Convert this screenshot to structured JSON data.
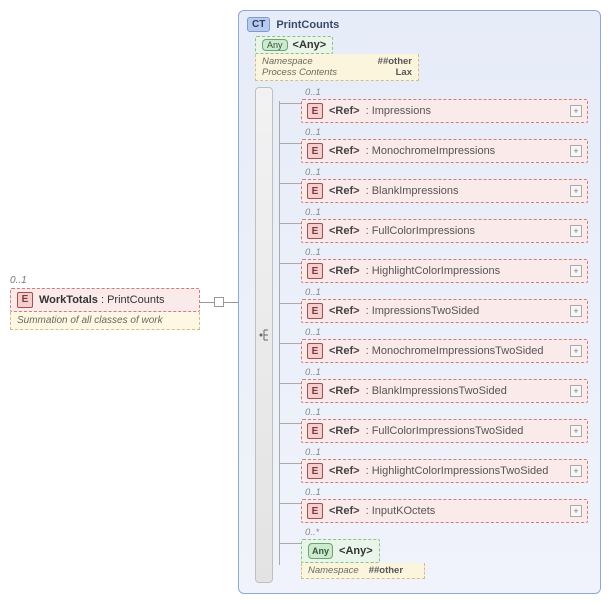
{
  "left": {
    "cardinality": "0..1",
    "badge": "E",
    "name": "WorkTotals",
    "type": "PrintCounts",
    "doc": "Summation of all classes of work"
  },
  "ct": {
    "badge": "CT",
    "title": "PrintCounts"
  },
  "anyTop": {
    "badge": "Any",
    "label": "<Any>",
    "details": [
      {
        "k": "Namespace",
        "v": "##other"
      },
      {
        "k": "Process Contents",
        "v": "Lax"
      }
    ]
  },
  "children": [
    {
      "card": "0..1",
      "badge": "E",
      "ref": "<Ref>",
      "type": "Impressions",
      "plus": true
    },
    {
      "card": "0..1",
      "badge": "E",
      "ref": "<Ref>",
      "type": "MonochromeImpressions",
      "plus": true
    },
    {
      "card": "0..1",
      "badge": "E",
      "ref": "<Ref>",
      "type": "BlankImpressions",
      "plus": true
    },
    {
      "card": "0..1",
      "badge": "E",
      "ref": "<Ref>",
      "type": "FullColorImpressions",
      "plus": true
    },
    {
      "card": "0..1",
      "badge": "E",
      "ref": "<Ref>",
      "type": "HighlightColorImpressions",
      "plus": true
    },
    {
      "card": "0..1",
      "badge": "E",
      "ref": "<Ref>",
      "type": "ImpressionsTwoSided",
      "plus": true
    },
    {
      "card": "0..1",
      "badge": "E",
      "ref": "<Ref>",
      "type": "MonochromeImpressionsTwoSided",
      "plus": true
    },
    {
      "card": "0..1",
      "badge": "E",
      "ref": "<Ref>",
      "type": "BlankImpressionsTwoSided",
      "plus": true
    },
    {
      "card": "0..1",
      "badge": "E",
      "ref": "<Ref>",
      "type": "FullColorImpressionsTwoSided",
      "plus": true
    },
    {
      "card": "0..1",
      "badge": "E",
      "ref": "<Ref>",
      "type": "HighlightColorImpressionsTwoSided",
      "plus": true
    },
    {
      "card": "0..1",
      "badge": "E",
      "ref": "<Ref>",
      "type": "InputKOctets",
      "plus": true
    }
  ],
  "anyBottom": {
    "card": "0..*",
    "badge": "Any",
    "label": "<Any>",
    "detailK": "Namespace",
    "detailV": "##other"
  }
}
